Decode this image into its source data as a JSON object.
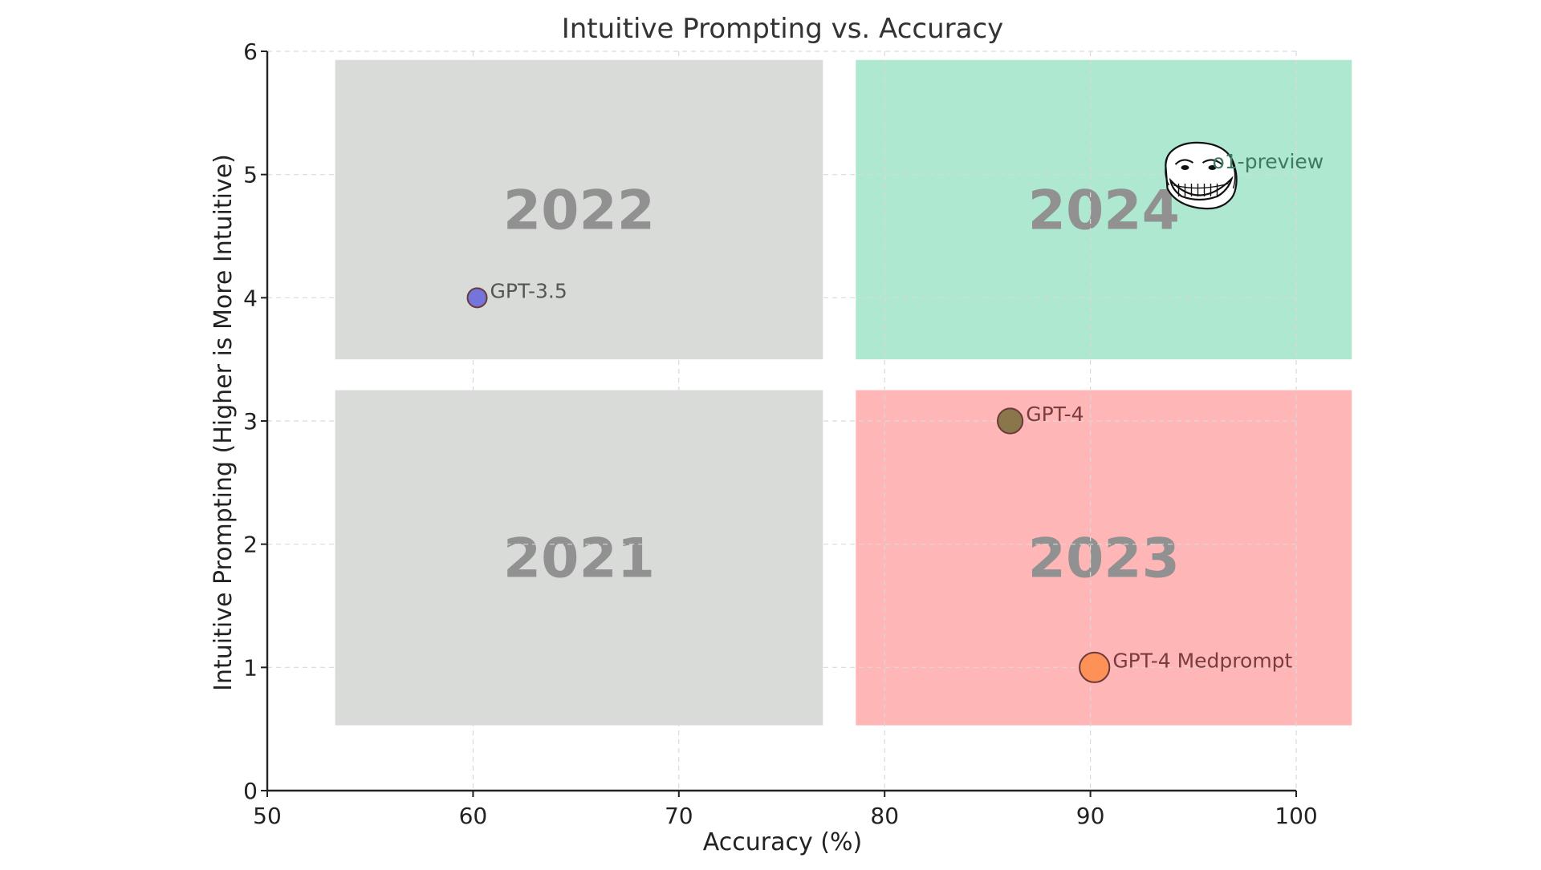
{
  "chart_data": {
    "type": "scatter",
    "title": "Intuitive Prompting vs. Accuracy",
    "xlabel": "Accuracy (%)",
    "ylabel": "Intuitive Prompting (Higher is More Intuitive)",
    "xlim": [
      50,
      100
    ],
    "ylim": [
      0,
      6
    ],
    "x_ticks": [
      "50",
      "60",
      "70",
      "80",
      "90",
      "100"
    ],
    "y_ticks": [
      "0",
      "1",
      "2",
      "3",
      "4",
      "5",
      "6"
    ],
    "grid": true,
    "regions": [
      {
        "label": "2022",
        "x": [
          53.3,
          77.0
        ],
        "y": [
          3.5,
          5.93
        ],
        "color": "#d9dbd9"
      },
      {
        "label": "2024",
        "x": [
          78.6,
          102.7
        ],
        "y": [
          3.5,
          5.93
        ],
        "color": "#aee8d1"
      },
      {
        "label": "2021",
        "x": [
          53.3,
          77.0
        ],
        "y": [
          0.53,
          3.25
        ],
        "color": "#d9dbd9"
      },
      {
        "label": "2023",
        "x": [
          78.6,
          102.7
        ],
        "y": [
          0.53,
          3.25
        ],
        "color": "#ffb6b7"
      }
    ],
    "points": [
      {
        "label": "GPT-3.5",
        "x": 60.2,
        "y": 4.0,
        "color": "#6b6bdb",
        "size": 1,
        "label_color": "#555555"
      },
      {
        "label": "GPT-4",
        "x": 86.1,
        "y": 3.0,
        "color": "#7f7140",
        "size": 1.3,
        "label_color": "#7a3c3c"
      },
      {
        "label": "GPT-4 Medprompt",
        "x": 90.2,
        "y": 1.0,
        "color": "#fe8e4f",
        "size": 1.55,
        "label_color": "#7a3c3c"
      },
      {
        "label": "o1-preview",
        "x": 95.3,
        "y": 5.05,
        "color": "#ffffff",
        "size": 1,
        "label_color": "#3e7a62",
        "icon": "troll-face-icon"
      }
    ]
  }
}
